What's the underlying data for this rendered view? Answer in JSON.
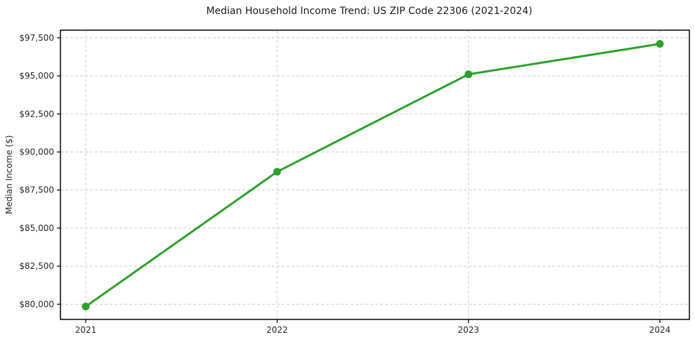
{
  "chart_data": {
    "type": "line",
    "title": "Median Household Income Trend: US ZIP Code 22306 (2021-2024)",
    "xlabel": "",
    "ylabel": "Median Income ($)",
    "x": [
      "2021",
      "2022",
      "2023",
      "2024"
    ],
    "values": [
      79850,
      88700,
      95100,
      97100
    ],
    "ylim": [
      79000,
      98000
    ],
    "y_ticks": [
      {
        "value": 80000,
        "label": "$80,000"
      },
      {
        "value": 82500,
        "label": "$82,500"
      },
      {
        "value": 85000,
        "label": "$85,000"
      },
      {
        "value": 87500,
        "label": "$87,500"
      },
      {
        "value": 90000,
        "label": "$90,000"
      },
      {
        "value": 92500,
        "label": "$92,500"
      },
      {
        "value": 95000,
        "label": "$95,000"
      },
      {
        "value": 97500,
        "label": "$97,500"
      }
    ],
    "grid": {
      "visible": true,
      "style": "dashed",
      "axes": "both"
    },
    "legend_position": "none",
    "marker": "circle",
    "colors": {
      "line": "#2ca02c",
      "marker": "#2ca02c",
      "grid": "#cccccc",
      "axis": "#000000",
      "tick_text": "#262626",
      "background": "#ffffff"
    }
  }
}
